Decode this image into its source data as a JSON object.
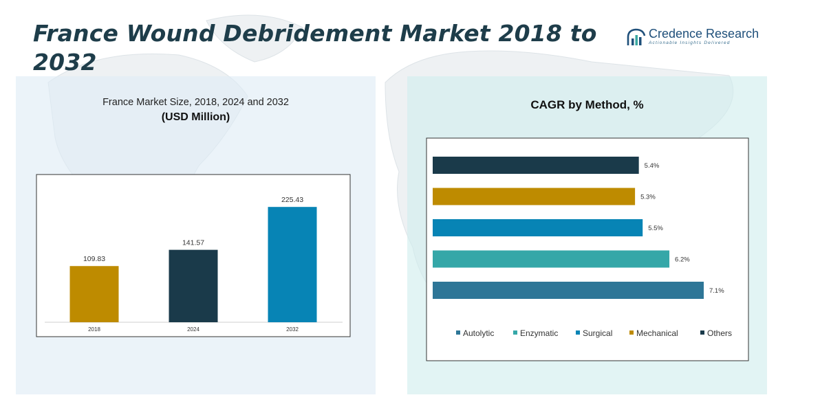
{
  "header": {
    "title": "France Wound Debridement Market 2018 to 2032"
  },
  "brand": {
    "name_part1": "Credence",
    "name_part2": " Research",
    "tagline": "Actionable Insights Delivered",
    "color": "#1e4f7a"
  },
  "left_panel": {
    "title": "France Market Size, 2018, 2024 and 2032",
    "subtitle": "(USD Million)"
  },
  "right_panel": {
    "title": "CAGR by Method, %"
  },
  "chart_data": [
    {
      "type": "bar",
      "title": "France Market Size, 2018, 2024 and 2032",
      "ylabel": "USD Million",
      "categories": [
        "2018",
        "2024",
        "2032"
      ],
      "values": [
        109.83,
        141.57,
        225.43
      ],
      "value_labels": [
        "109.83",
        "141.57",
        "225.43"
      ],
      "colors": [
        "#be8b00",
        "#1a3a4a",
        "#0784b5"
      ],
      "ylim": [
        0,
        270
      ],
      "grid": false
    },
    {
      "type": "bar",
      "orientation": "horizontal",
      "title": "CAGR by Method, %",
      "categories": [
        "Others",
        "Mechanical",
        "Surgical",
        "Enzymatic",
        "Autolytic"
      ],
      "values": [
        5.4,
        5.3,
        5.5,
        6.2,
        7.1
      ],
      "value_labels": [
        "5.4%",
        "5.3%",
        "5.5%",
        "6.2%",
        "7.1%"
      ],
      "colors": [
        "#1a3a4a",
        "#be8b00",
        "#0784b5",
        "#35a7a8",
        "#2e7697"
      ],
      "xlim": [
        0,
        8
      ],
      "grid": false,
      "legend": {
        "position": "bottom",
        "items": [
          {
            "label": "Autolytic",
            "color": "#2e7697"
          },
          {
            "label": "Enzymatic",
            "color": "#35a7a8"
          },
          {
            "label": "Surgical",
            "color": "#0784b5"
          },
          {
            "label": "Mechanical",
            "color": "#be8b00"
          },
          {
            "label": "Others",
            "color": "#1a3a4a"
          }
        ]
      }
    }
  ]
}
